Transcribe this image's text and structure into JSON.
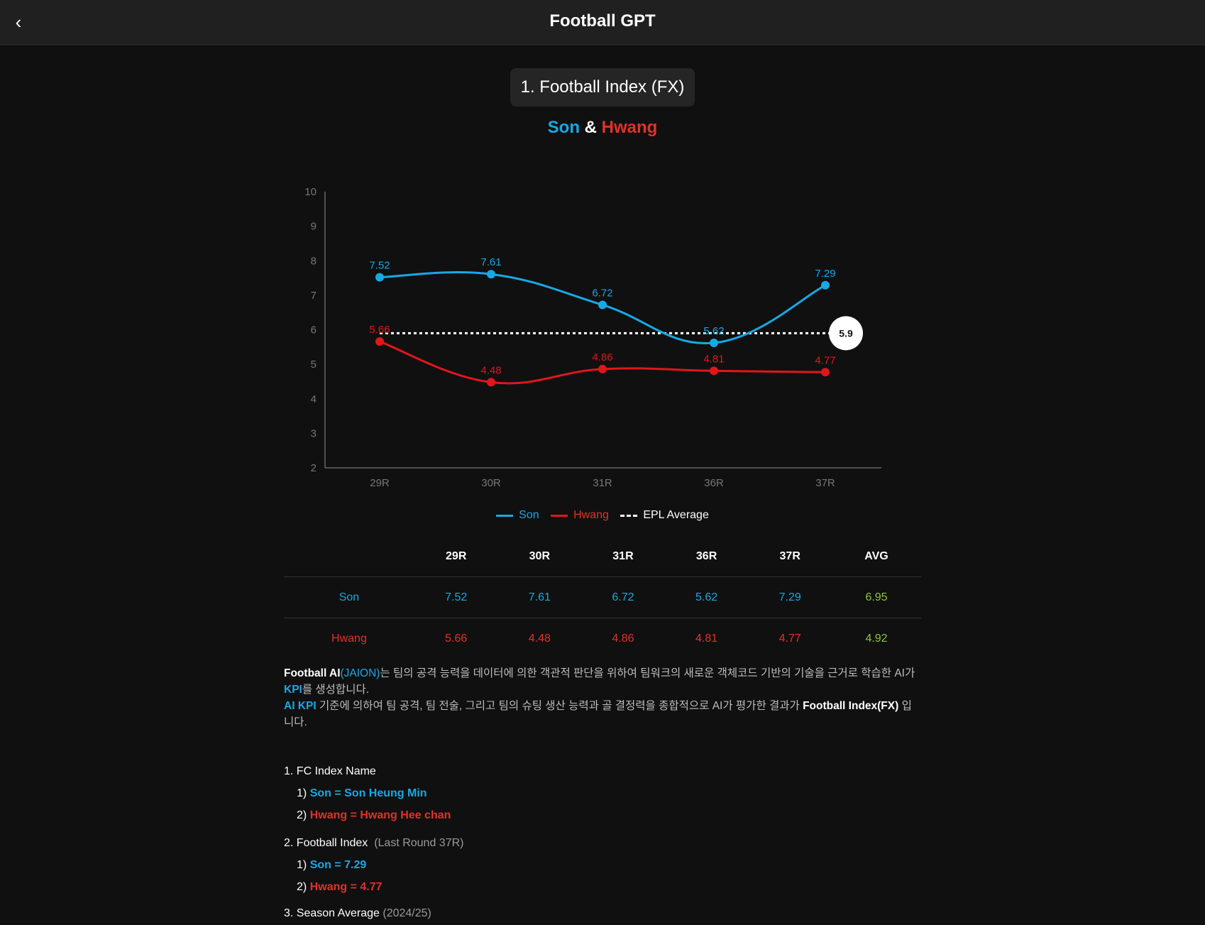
{
  "header": {
    "title": "Football GPT",
    "back_icon": "chevron-left-icon"
  },
  "section": {
    "title": "1. Football Index (FX)"
  },
  "subtitle": {
    "son": "Son",
    "amp": "&",
    "hwang": "Hwang"
  },
  "colors": {
    "son": "#18a8e6",
    "hwang": "#e1161c",
    "average": "#ffffff",
    "avg_column": "#8dc63f"
  },
  "chart_data": {
    "type": "line",
    "categories": [
      "29R",
      "30R",
      "31R",
      "36R",
      "37R"
    ],
    "y_ticks": [
      "2",
      "3",
      "4",
      "5",
      "6",
      "7",
      "8",
      "9",
      "10"
    ],
    "ylim": [
      2,
      10
    ],
    "grid": false,
    "series": [
      {
        "name": "Son",
        "values": [
          7.52,
          7.61,
          6.72,
          5.62,
          7.29
        ],
        "labels": [
          "7.52",
          "7.61",
          "6.72",
          "5.62",
          "7.29"
        ]
      },
      {
        "name": "Hwang",
        "values": [
          5.66,
          4.48,
          4.86,
          4.81,
          4.77
        ],
        "labels": [
          "5.66",
          "4.48",
          "4.86",
          "4.81",
          "4.77"
        ]
      }
    ],
    "average": {
      "name": "EPL Average",
      "value": 5.9,
      "label": "5.9",
      "style": "dashed"
    },
    "legend_position": "bottom"
  },
  "legend": {
    "son": "Son",
    "hwang": "Hwang",
    "average": "EPL Average"
  },
  "table": {
    "headers": [
      "",
      "29R",
      "30R",
      "31R",
      "36R",
      "37R",
      "AVG"
    ],
    "rows": [
      {
        "name": "Son",
        "values": [
          "7.52",
          "7.61",
          "6.72",
          "5.62",
          "7.29"
        ],
        "avg": "6.95"
      },
      {
        "name": "Hwang",
        "values": [
          "5.66",
          "4.48",
          "4.86",
          "4.81",
          "4.77"
        ],
        "avg": "4.92"
      }
    ]
  },
  "description": {
    "p1_bold": "Football AI",
    "p1_brand": "(JAION)",
    "p1_text": "는 팀의 공격 능력을 데이터에 의한 객관적 판단을 위하여 팀워크의 새로운 객체코드 기반의 기술을 근거로 학습한 AI가 ",
    "p1_kpi": "KPI",
    "p1_end": "를 생성합니다.",
    "p2_kpi": "AI KPI",
    "p2_text": " 기준에 의하여 팀 공격, 팀 전술, 그리고 팀의 슈팅 생산 능력과 골 결정력을 종합적으로 AI가 평가한 결과가 ",
    "p2_bold": "Football Index(FX)",
    "p2_end": " 입니다."
  },
  "list": {
    "s1_title": "1. FC Index Name",
    "s1_i1_num": "1)",
    "s1_i1": "Son = Son Heung Min",
    "s1_i2_num": "2)",
    "s1_i2": "Hwang = Hwang Hee chan",
    "s2_title": "2. Football Index",
    "s2_note": "(Last Round 37R)",
    "s2_i1_num": "1)",
    "s2_i1": "Son  = 7.29",
    "s2_i2_num": "2)",
    "s2_i2": "Hwang  = 4.77",
    "s3_title": "3. Season Average",
    "s3_note": "(2024/25)"
  }
}
